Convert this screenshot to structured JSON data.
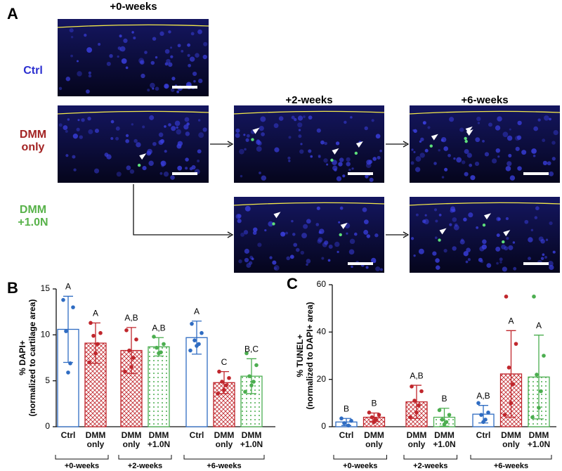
{
  "panel_a": {
    "panel_label": "A",
    "columns": [
      "+0-weeks",
      "+2-weeks",
      "+6-weeks"
    ],
    "rows": [
      "Ctrl",
      "DMM only",
      "DMM +1.0N"
    ]
  },
  "chart_data": [
    {
      "type": "bar",
      "panel_label": "B",
      "y_title": "% DAPI+",
      "y_subtitle": "(normalized to cartilage area)",
      "ylim": [
        0,
        15
      ],
      "yticks": [
        0,
        5,
        10,
        15
      ],
      "styles": {
        "Ctrl": {
          "color": "#2f6cc2",
          "fill": "none"
        },
        "DMM only": {
          "color": "#c0272d",
          "fill": "crosshatch"
        },
        "DMM +1.0N": {
          "color": "#4cae50",
          "fill": "dots"
        }
      },
      "groups": [
        {
          "name": "+0-weeks",
          "categories": [
            "Ctrl",
            "DMM only"
          ],
          "values": [
            10.6,
            9.1
          ],
          "errors": [
            3.6,
            2.2
          ],
          "labels": [
            "A",
            "A"
          ],
          "points": [
            [
              13.8,
              13.0,
              10.4,
              6.9,
              5.9
            ],
            [
              11.3,
              10.2,
              9.9,
              9.0,
              8.0,
              7.0
            ]
          ]
        },
        {
          "name": "+2-weeks",
          "categories": [
            "DMM only",
            "DMM +1.0N"
          ],
          "values": [
            8.3,
            8.7
          ],
          "errors": [
            2.5,
            1.0
          ],
          "labels": [
            "A,B",
            "A,B"
          ],
          "points": [
            [
              10.5,
              9.5,
              8.3,
              7.5,
              6.5,
              6.0
            ],
            [
              9.8,
              9.0,
              8.6,
              8.1,
              8.0
            ]
          ]
        },
        {
          "name": "+6-weeks",
          "categories": [
            "Ctrl",
            "DMM only",
            "DMM +1.0N"
          ],
          "values": [
            9.7,
            4.8,
            5.5
          ],
          "errors": [
            1.8,
            1.2,
            1.9
          ],
          "labels": [
            "A",
            "C",
            "B,C"
          ],
          "points": [
            [
              11.2,
              10.2,
              9.4,
              9.0,
              8.8,
              8.3
            ],
            [
              6.0,
              5.3,
              4.9,
              4.5,
              4.0,
              3.6
            ],
            [
              8.0,
              6.7,
              5.5,
              4.9,
              4.5,
              3.8
            ]
          ]
        }
      ]
    },
    {
      "type": "bar",
      "panel_label": "C",
      "y_title": "% TUNEL+",
      "y_subtitle": "(normalized to DAPI+ area)",
      "ylim": [
        0,
        60
      ],
      "yticks": [
        0,
        20,
        40,
        60
      ],
      "styles": {
        "Ctrl": {
          "color": "#2f6cc2",
          "fill": "none"
        },
        "DMM only": {
          "color": "#c0272d",
          "fill": "crosshatch"
        },
        "DMM +1.0N": {
          "color": "#4cae50",
          "fill": "dots"
        }
      },
      "groups": [
        {
          "name": "+0-weeks",
          "categories": [
            "Ctrl",
            "DMM only"
          ],
          "values": [
            2.0,
            4.0
          ],
          "errors": [
            1.5,
            1.8
          ],
          "labels": [
            "B",
            "B"
          ],
          "points": [
            [
              3.5,
              2.5,
              1.5,
              0.5
            ],
            [
              6.0,
              5.0,
              4.0,
              3.0,
              2.0
            ]
          ]
        },
        {
          "name": "+2-weeks",
          "categories": [
            "DMM only",
            "DMM +1.0N"
          ],
          "values": [
            10.5,
            4.0
          ],
          "errors": [
            7.0,
            3.8
          ],
          "labels": [
            "A,B",
            "B"
          ],
          "points": [
            [
              17.0,
              15.0,
              11.0,
              9.0,
              6.0,
              4.0
            ],
            [
              7.0,
              5.0,
              3.0,
              2.0,
              1.0
            ]
          ]
        },
        {
          "name": "+6-weeks",
          "categories": [
            "Ctrl",
            "DMM only",
            "DMM +1.0N"
          ],
          "values": [
            5.3,
            22.3,
            21.0
          ],
          "errors": [
            3.7,
            18.3,
            17.7
          ],
          "labels": [
            "A,B",
            "A",
            "A"
          ],
          "points": [
            [
              10.0,
              6.0,
              5.0,
              3.0,
              2.0
            ],
            [
              55.0,
              35.0,
              25.0,
              18.0,
              10.0,
              5.0
            ],
            [
              55.0,
              30.0,
              22.0,
              15.0,
              8.0,
              4.0
            ]
          ]
        }
      ]
    }
  ]
}
